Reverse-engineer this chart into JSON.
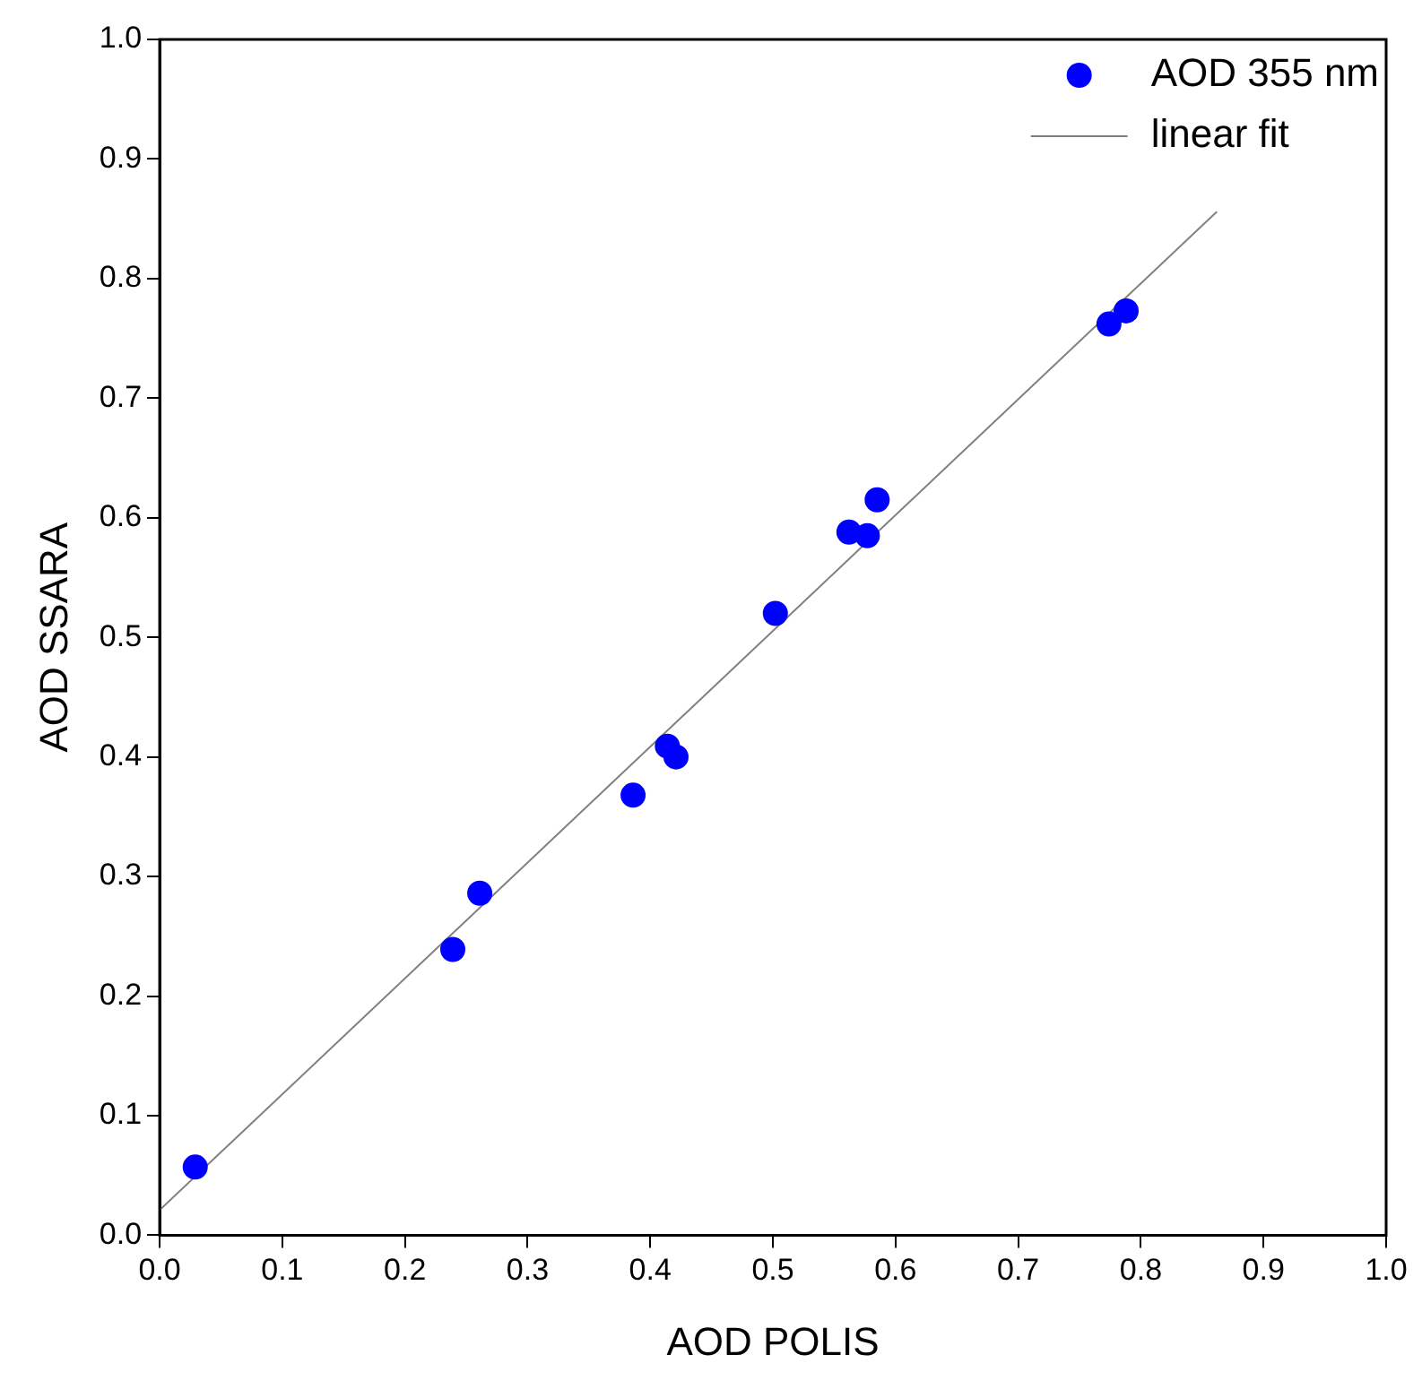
{
  "chart_data": {
    "type": "scatter",
    "xlabel": "AOD POLIS",
    "ylabel": "AOD SSARA",
    "xlim": [
      0,
      1
    ],
    "ylim": [
      0,
      1
    ],
    "xticks": [
      {
        "value": 0,
        "label": "0.0"
      },
      0.1,
      0.2,
      0.3,
      0.4,
      0.5,
      0.6,
      0.7,
      0.8,
      0.9,
      {
        "value": 1,
        "label": "1.0"
      }
    ],
    "yticks": [
      {
        "value": 0,
        "label": "0.0"
      },
      0.1,
      0.2,
      0.3,
      0.4,
      0.5,
      0.6,
      0.7,
      0.8,
      0.9,
      {
        "value": 1,
        "label": "1.0"
      }
    ],
    "grid": false,
    "legend": "top right",
    "marker": "circle",
    "series": [
      {
        "name": "AOD 355 nm",
        "color": "#0000ff",
        "x": [
          0.029,
          0.239,
          0.261,
          0.386,
          0.414,
          0.421,
          0.502,
          0.562,
          0.577,
          0.585,
          0.774,
          0.788
        ],
        "values": [
          0.057,
          0.239,
          0.286,
          0.368,
          0.409,
          0.4,
          0.52,
          0.588,
          0.585,
          0.615,
          0.762,
          0.773
        ]
      },
      {
        "name": "linear fit",
        "color": "#808080",
        "type": "line",
        "marker": "none",
        "x": [
          0,
          0.862
        ],
        "values": [
          0.021,
          0.856
        ]
      }
    ]
  }
}
